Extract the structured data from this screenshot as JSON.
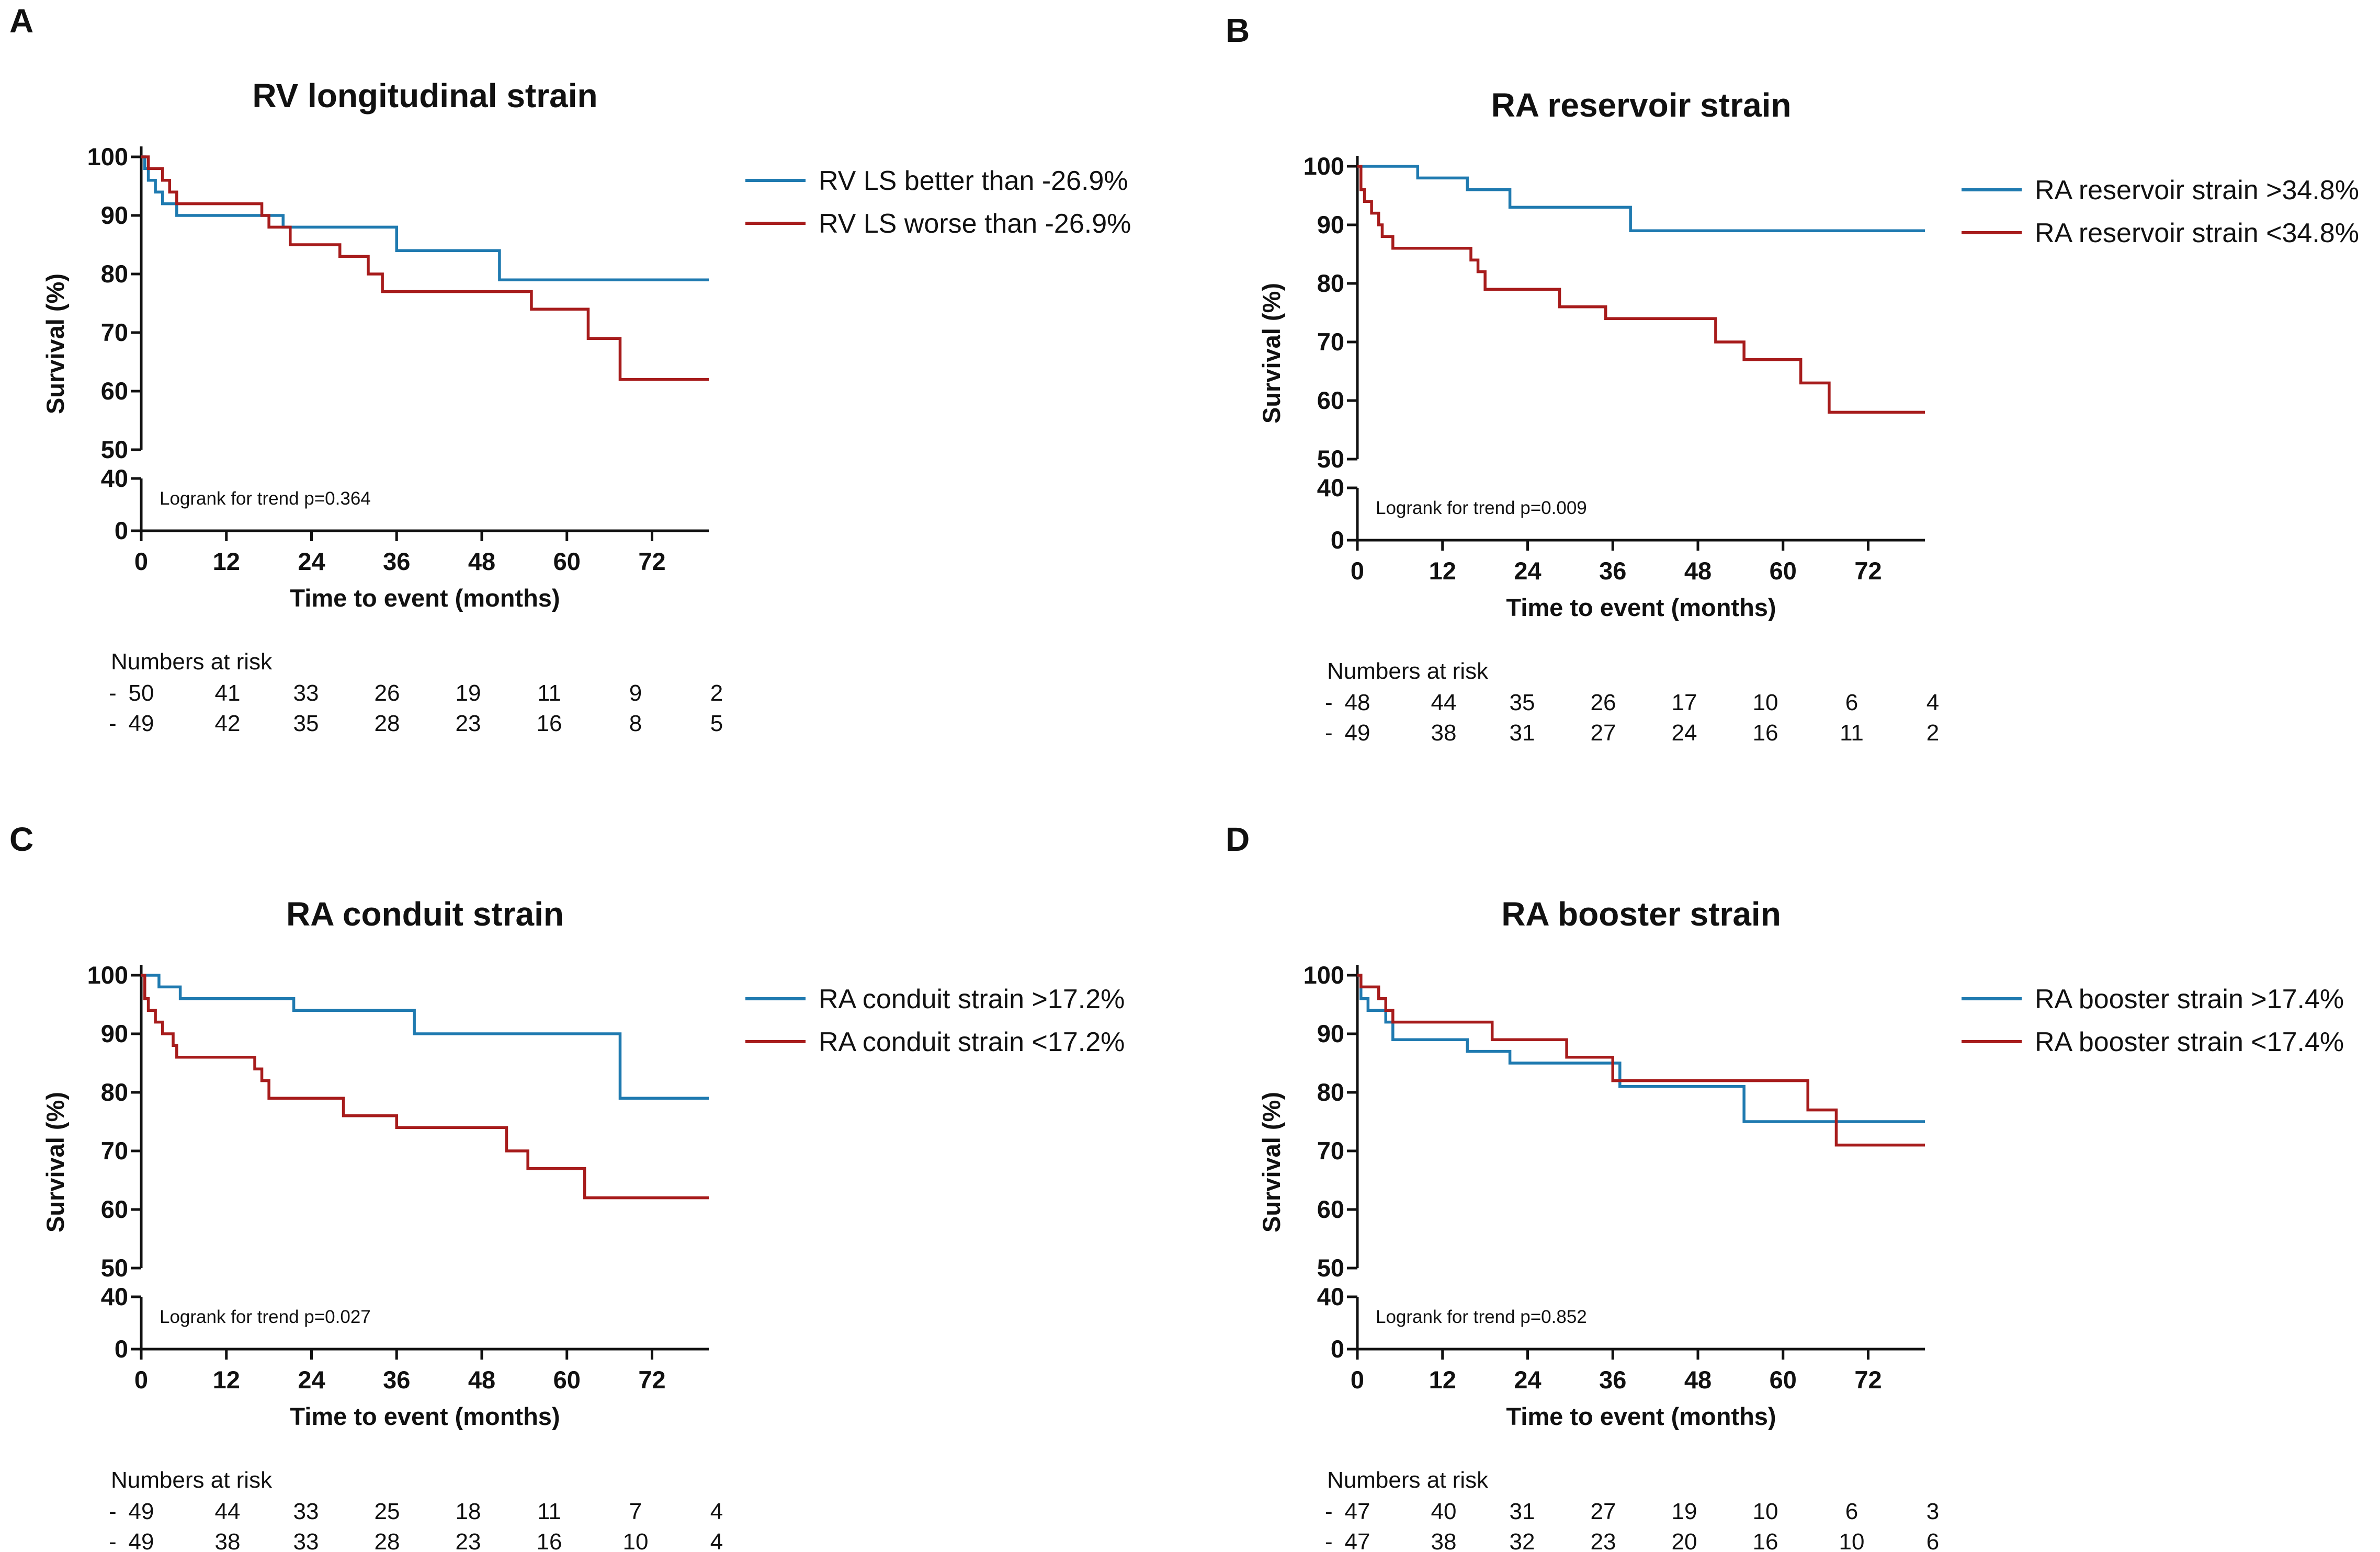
{
  "figure": {
    "colors": {
      "blue": "#1f7ab0",
      "red": "#a71c1c"
    }
  },
  "chart_data": [
    {
      "type": "line",
      "letter": "A",
      "title": "RV longitudinal strain",
      "xlabel": "Time to event (months)",
      "ylabel": "Survival (%)",
      "xlim": [
        0,
        80
      ],
      "xticks": [
        0,
        12,
        24,
        36,
        48,
        60,
        72
      ],
      "ylim_upper": [
        50,
        100
      ],
      "yticks_upper": [
        50,
        60,
        70,
        80,
        90,
        100
      ],
      "ylim_lower": [
        0,
        40
      ],
      "yticks_lower": [
        0,
        40
      ],
      "note": "Logrank for trend p=0.364",
      "risk_title": "Numbers at risk",
      "series": [
        {
          "name": "RV LS better than -26.9%",
          "color": "#1f7ab0",
          "points": [
            [
              0,
              100
            ],
            [
              0.5,
              98
            ],
            [
              1,
              96
            ],
            [
              2,
              94
            ],
            [
              3,
              92
            ],
            [
              5,
              90
            ],
            [
              18,
              90
            ],
            [
              20,
              88
            ],
            [
              35,
              88
            ],
            [
              36,
              84
            ],
            [
              50,
              84
            ],
            [
              50.5,
              79
            ],
            [
              80,
              79
            ]
          ],
          "risk": [
            "50",
            "41",
            "33",
            "26",
            "19",
            "11",
            "9",
            "2"
          ]
        },
        {
          "name": "RV LS worse than -26.9%",
          "color": "#a71c1c",
          "points": [
            [
              0,
              100
            ],
            [
              1,
              98
            ],
            [
              3,
              96
            ],
            [
              4,
              94
            ],
            [
              5,
              92
            ],
            [
              15,
              92
            ],
            [
              17,
              90
            ],
            [
              18,
              88
            ],
            [
              21,
              85
            ],
            [
              28,
              83
            ],
            [
              32,
              80
            ],
            [
              34,
              77
            ],
            [
              54,
              77
            ],
            [
              55,
              74
            ],
            [
              62,
              74
            ],
            [
              63,
              69
            ],
            [
              67,
              69
            ],
            [
              67.5,
              62
            ],
            [
              80,
              62
            ]
          ],
          "risk": [
            "49",
            "42",
            "35",
            "28",
            "23",
            "16",
            "8",
            "5"
          ]
        }
      ]
    },
    {
      "type": "line",
      "letter": "B",
      "title": "RA reservoir strain",
      "xlabel": "Time to event (months)",
      "ylabel": "Survival (%)",
      "xlim": [
        0,
        80
      ],
      "xticks": [
        0,
        12,
        24,
        36,
        48,
        60,
        72
      ],
      "ylim_upper": [
        50,
        100
      ],
      "yticks_upper": [
        50,
        60,
        70,
        80,
        90,
        100
      ],
      "ylim_lower": [
        0,
        40
      ],
      "yticks_lower": [
        0,
        40
      ],
      "note": "Logrank for trend p=0.009",
      "risk_title": "Numbers at risk",
      "series": [
        {
          "name": "RA reservoir strain >34.8%",
          "color": "#1f7ab0",
          "points": [
            [
              0,
              100
            ],
            [
              8,
              100
            ],
            [
              8.5,
              98
            ],
            [
              15,
              98
            ],
            [
              15.5,
              96
            ],
            [
              21,
              96
            ],
            [
              21.5,
              93
            ],
            [
              38,
              93
            ],
            [
              38.5,
              89
            ],
            [
              80,
              89
            ]
          ],
          "risk": [
            "48",
            "44",
            "35",
            "26",
            "17",
            "10",
            "6",
            "4"
          ]
        },
        {
          "name": "RA reservoir strain <34.8%",
          "color": "#a71c1c",
          "points": [
            [
              0,
              100
            ],
            [
              0.5,
              96
            ],
            [
              1,
              94
            ],
            [
              2,
              92
            ],
            [
              3,
              90
            ],
            [
              3.5,
              88
            ],
            [
              5,
              86
            ],
            [
              15,
              86
            ],
            [
              16,
              84
            ],
            [
              17,
              82
            ],
            [
              18,
              79
            ],
            [
              28,
              79
            ],
            [
              28.5,
              76
            ],
            [
              34,
              76
            ],
            [
              35,
              74
            ],
            [
              50,
              74
            ],
            [
              50.5,
              70
            ],
            [
              54,
              70
            ],
            [
              54.5,
              67
            ],
            [
              62,
              67
            ],
            [
              62.5,
              63
            ],
            [
              66,
              63
            ],
            [
              66.5,
              58
            ],
            [
              80,
              58
            ]
          ],
          "risk": [
            "49",
            "38",
            "31",
            "27",
            "24",
            "16",
            "11",
            "2"
          ]
        }
      ]
    },
    {
      "type": "line",
      "letter": "C",
      "title": "RA conduit strain",
      "xlabel": "Time to event (months)",
      "ylabel": "Survival (%)",
      "xlim": [
        0,
        80
      ],
      "xticks": [
        0,
        12,
        24,
        36,
        48,
        60,
        72
      ],
      "ylim_upper": [
        50,
        100
      ],
      "yticks_upper": [
        50,
        60,
        70,
        80,
        90,
        100
      ],
      "ylim_lower": [
        0,
        40
      ],
      "yticks_lower": [
        0,
        40
      ],
      "note": "Logrank for trend p=0.027",
      "risk_title": "Numbers at risk",
      "series": [
        {
          "name": "RA conduit strain >17.2%",
          "color": "#1f7ab0",
          "points": [
            [
              0,
              100
            ],
            [
              2,
              100
            ],
            [
              2.5,
              98
            ],
            [
              5,
              98
            ],
            [
              5.5,
              96
            ],
            [
              21,
              96
            ],
            [
              21.5,
              94
            ],
            [
              38,
              94
            ],
            [
              38.5,
              90
            ],
            [
              67,
              90
            ],
            [
              67.5,
              79
            ],
            [
              80,
              79
            ]
          ],
          "risk": [
            "49",
            "44",
            "33",
            "25",
            "18",
            "11",
            "7",
            "4"
          ]
        },
        {
          "name": "RA conduit strain <17.2%",
          "color": "#a71c1c",
          "points": [
            [
              0,
              100
            ],
            [
              0.5,
              96
            ],
            [
              1,
              94
            ],
            [
              2,
              92
            ],
            [
              3,
              90
            ],
            [
              4.5,
              88
            ],
            [
              5,
              86
            ],
            [
              15,
              86
            ],
            [
              16,
              84
            ],
            [
              17,
              82
            ],
            [
              18,
              79
            ],
            [
              28,
              79
            ],
            [
              28.5,
              76
            ],
            [
              35,
              76
            ],
            [
              36,
              74
            ],
            [
              51,
              74
            ],
            [
              51.5,
              70
            ],
            [
              54,
              70
            ],
            [
              54.5,
              67
            ],
            [
              62,
              67
            ],
            [
              62.5,
              62
            ],
            [
              80,
              62
            ]
          ],
          "risk": [
            "49",
            "38",
            "33",
            "28",
            "23",
            "16",
            "10",
            "4"
          ]
        }
      ]
    },
    {
      "type": "line",
      "letter": "D",
      "title": "RA booster strain",
      "xlabel": "Time to event (months)",
      "ylabel": "Survival (%)",
      "xlim": [
        0,
        80
      ],
      "xticks": [
        0,
        12,
        24,
        36,
        48,
        60,
        72
      ],
      "ylim_upper": [
        50,
        100
      ],
      "yticks_upper": [
        50,
        60,
        70,
        80,
        90,
        100
      ],
      "ylim_lower": [
        0,
        40
      ],
      "yticks_lower": [
        0,
        40
      ],
      "note": "Logrank for trend p=0.852",
      "risk_title": "Numbers at risk",
      "series": [
        {
          "name": "RA booster strain >17.4%",
          "color": "#1f7ab0",
          "points": [
            [
              0,
              100
            ],
            [
              0.5,
              96
            ],
            [
              1.5,
              94
            ],
            [
              3,
              94
            ],
            [
              4,
              92
            ],
            [
              5,
              89
            ],
            [
              15,
              89
            ],
            [
              15.5,
              87
            ],
            [
              21,
              87
            ],
            [
              21.5,
              85
            ],
            [
              36,
              85
            ],
            [
              37,
              81
            ],
            [
              54,
              81
            ],
            [
              54.5,
              75
            ],
            [
              80,
              75
            ]
          ],
          "risk": [
            "47",
            "40",
            "31",
            "27",
            "19",
            "10",
            "6",
            "3"
          ]
        },
        {
          "name": "RA booster strain <17.4%",
          "color": "#a71c1c",
          "points": [
            [
              0,
              100
            ],
            [
              0.5,
              98
            ],
            [
              2,
              98
            ],
            [
              3,
              96
            ],
            [
              4,
              94
            ],
            [
              5,
              92
            ],
            [
              18,
              92
            ],
            [
              19,
              89
            ],
            [
              29,
              89
            ],
            [
              29.5,
              86
            ],
            [
              35,
              86
            ],
            [
              36,
              82
            ],
            [
              63,
              82
            ],
            [
              63.5,
              77
            ],
            [
              67,
              77
            ],
            [
              67.5,
              71
            ],
            [
              80,
              71
            ]
          ],
          "risk": [
            "47",
            "38",
            "32",
            "23",
            "20",
            "16",
            "10",
            "6"
          ]
        }
      ]
    }
  ]
}
